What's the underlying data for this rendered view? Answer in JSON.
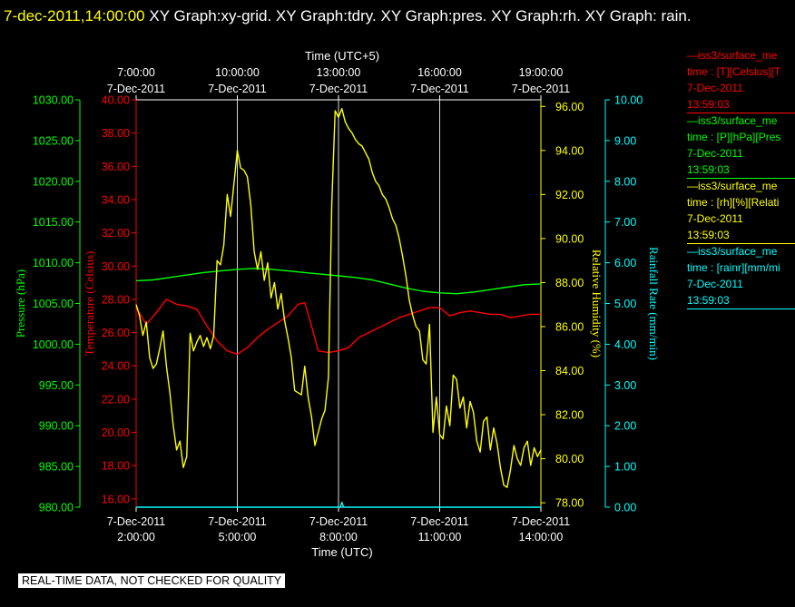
{
  "header": {
    "timestamp": "7-dec-2011,14:00:00",
    "graphs": "XY Graph:xy-grid.  XY Graph:tdry.  XY Graph:pres.  XY Graph:rh.  XY Graph: rain."
  },
  "legend": [
    {
      "color": "#ff0000",
      "line1": "—iss3/surface_me",
      "line2": "time : [T][Celsius][T",
      "date": "7-Dec-2011",
      "time": "13:59:03"
    },
    {
      "color": "#00ff00",
      "line1": "—iss3/surface_me",
      "line2": "time : [P][hPa][Pres",
      "date": "7-Dec-2011",
      "time": "13:59:03"
    },
    {
      "color": "#ffff00",
      "line1": "—iss3/surface_me",
      "line2": "time : [rh][%][Relati",
      "date": "7-Dec-2011",
      "time": "13:59:03"
    },
    {
      "color": "#00ffff",
      "line1": "—iss3/surface_me",
      "line2": "time : [rainr][mm/mi",
      "date": "7-Dec-2011",
      "time": "13:59:03"
    }
  ],
  "footer": "REAL-TIME DATA, NOT CHECKED FOR QUALITY",
  "chart_data": {
    "type": "line",
    "x_bottom": {
      "label": "Time (UTC)",
      "ticks": [
        {
          "date": "7-Dec-2011",
          "time": "2:00:00"
        },
        {
          "date": "7-Dec-2011",
          "time": "5:00:00"
        },
        {
          "date": "7-Dec-2011",
          "time": "8:00:00"
        },
        {
          "date": "7-Dec-2011",
          "time": "11:00:00"
        },
        {
          "date": "7-Dec-2011",
          "time": "14:00:00"
        }
      ],
      "range_hours": [
        2,
        14
      ]
    },
    "x_top": {
      "label": "Time (UTC+5)",
      "ticks": [
        {
          "time": "7:00:00",
          "date": "7-Dec-2011"
        },
        {
          "time": "10:00:00",
          "date": "7-Dec-2011"
        },
        {
          "time": "13:00:00",
          "date": "7-Dec-2011"
        },
        {
          "time": "16:00:00",
          "date": "7-Dec-2011"
        },
        {
          "time": "19:00:00",
          "date": "7-Dec-2011"
        }
      ]
    },
    "axes": {
      "pressure": {
        "label": "Pressure (hPa)",
        "color": "#00ff00",
        "ylim": [
          980,
          1030
        ],
        "ticks": [
          "980.00",
          "985.00",
          "990.00",
          "995.00",
          "1000.00",
          "1005.00",
          "1010.00",
          "1015.00",
          "1020.00",
          "1025.00",
          "1030.00"
        ]
      },
      "temperature": {
        "label": "Temperature (Celsius)",
        "color": "#ff0000",
        "ylim": [
          15.5,
          40
        ],
        "ticks": [
          "16.00",
          "18.00",
          "20.00",
          "22.00",
          "24.00",
          "26.00",
          "28.00",
          "30.00",
          "32.00",
          "34.00",
          "36.00",
          "38.00",
          "40.00"
        ]
      },
      "humidity": {
        "label": "Relative Humidity (%)",
        "color": "#ffff00",
        "ylim": [
          77.8,
          96.3
        ],
        "ticks": [
          "78.00",
          "80.00",
          "82.00",
          "84.00",
          "86.00",
          "88.00",
          "90.00",
          "92.00",
          "94.00",
          "96.00"
        ]
      },
      "rainfall": {
        "label": "Rainfall Rate (mm/min)",
        "color": "#00ffff",
        "ylim": [
          0,
          10
        ],
        "ticks": [
          "0.00",
          "1.00",
          "2.00",
          "3.00",
          "4.00",
          "5.00",
          "6.00",
          "7.00",
          "8.00",
          "9.00",
          "10.00"
        ]
      }
    },
    "grid": "vertical lines at labeled times",
    "series": [
      {
        "name": "iss3/surface_me [T][Celsius]",
        "axis": "temperature",
        "color": "#ff0000",
        "x": [
          2.0,
          2.3,
          2.6,
          2.9,
          3.2,
          3.5,
          3.8,
          4.1,
          4.4,
          4.7,
          5.0,
          5.3,
          5.6,
          5.9,
          6.2,
          6.5,
          6.8,
          7.0,
          7.2,
          7.4,
          7.7,
          8.0,
          8.3,
          8.6,
          8.9,
          9.2,
          9.5,
          9.8,
          10.1,
          10.4,
          10.7,
          11.0,
          11.3,
          11.6,
          11.9,
          12.2,
          12.5,
          12.8,
          13.1,
          13.4,
          13.7,
          14.0
        ],
        "y": [
          27.5,
          26.5,
          27.2,
          28.0,
          27.7,
          27.6,
          27.4,
          26.4,
          25.5,
          24.9,
          24.7,
          25.1,
          25.7,
          26.2,
          26.6,
          27.0,
          27.7,
          27.8,
          26.4,
          24.9,
          24.8,
          24.9,
          25.1,
          25.7,
          26.0,
          26.3,
          26.6,
          26.9,
          27.1,
          27.3,
          27.5,
          27.5,
          27.0,
          27.2,
          27.3,
          27.2,
          27.1,
          27.1,
          26.9,
          27.0,
          27.1,
          27.1
        ]
      },
      {
        "name": "iss3/surface_me [P][hPa]",
        "axis": "pressure",
        "color": "#00ff00",
        "x": [
          2.0,
          2.5,
          3.0,
          3.5,
          4.0,
          4.5,
          5.0,
          5.5,
          6.0,
          6.5,
          7.0,
          7.5,
          8.0,
          8.5,
          9.0,
          9.5,
          10.0,
          10.5,
          11.0,
          11.5,
          12.0,
          12.5,
          13.0,
          13.5,
          14.0
        ],
        "y": [
          1007.8,
          1007.9,
          1008.2,
          1008.5,
          1008.8,
          1009.0,
          1009.2,
          1009.3,
          1009.2,
          1009.0,
          1008.8,
          1008.6,
          1008.4,
          1008.2,
          1007.9,
          1007.4,
          1006.9,
          1006.5,
          1006.3,
          1006.2,
          1006.4,
          1006.7,
          1007.0,
          1007.3,
          1007.4
        ]
      },
      {
        "name": "iss3/surface_me [rh][%]",
        "axis": "humidity",
        "color": "#ffff00",
        "x": [
          2.0,
          2.1,
          2.2,
          2.3,
          2.4,
          2.5,
          2.6,
          2.7,
          2.8,
          2.9,
          3.0,
          3.1,
          3.2,
          3.3,
          3.4,
          3.5,
          3.6,
          3.7,
          3.8,
          3.9,
          4.0,
          4.1,
          4.2,
          4.3,
          4.4,
          4.5,
          4.6,
          4.7,
          4.8,
          4.9,
          5.0,
          5.1,
          5.2,
          5.3,
          5.4,
          5.5,
          5.6,
          5.7,
          5.8,
          5.9,
          6.0,
          6.1,
          6.2,
          6.3,
          6.4,
          6.5,
          6.6,
          6.7,
          6.8,
          6.9,
          7.0,
          7.1,
          7.2,
          7.3,
          7.4,
          7.5,
          7.6,
          7.7,
          7.8,
          7.9,
          8.0,
          8.1,
          8.2,
          8.3,
          8.4,
          8.5,
          8.6,
          8.7,
          8.8,
          8.9,
          9.0,
          9.1,
          9.2,
          9.3,
          9.4,
          9.5,
          9.6,
          9.7,
          9.8,
          9.9,
          10.0,
          10.1,
          10.2,
          10.3,
          10.4,
          10.5,
          10.6,
          10.7,
          10.8,
          10.9,
          11.0,
          11.1,
          11.2,
          11.3,
          11.4,
          11.5,
          11.6,
          11.7,
          11.8,
          11.9,
          12.0,
          12.1,
          12.2,
          12.3,
          12.4,
          12.5,
          12.6,
          12.7,
          12.8,
          12.9,
          13.0,
          13.1,
          13.2,
          13.3,
          13.4,
          13.5,
          13.6,
          13.7,
          13.8,
          13.9,
          14.0
        ],
        "y": [
          87.0,
          86.5,
          85.6,
          86.2,
          84.6,
          84.1,
          84.3,
          85.0,
          85.8,
          84.2,
          83.0,
          81.5,
          80.4,
          80.8,
          79.6,
          80.1,
          85.7,
          84.9,
          85.3,
          85.6,
          85.1,
          85.5,
          85.0,
          85.6,
          89.0,
          88.8,
          89.7,
          92.0,
          91.0,
          92.5,
          94.0,
          93.2,
          93.1,
          92.8,
          91.5,
          89.4,
          88.6,
          89.4,
          88.1,
          88.9,
          87.3,
          88.0,
          86.8,
          87.5,
          86.3,
          85.5,
          84.6,
          83.1,
          83.0,
          82.9,
          84.2,
          82.8,
          81.9,
          80.6,
          81.2,
          81.8,
          82.2,
          83.7,
          91.6,
          95.8,
          95.5,
          95.9,
          95.3,
          95.0,
          94.8,
          94.5,
          94.3,
          94.2,
          93.9,
          93.6,
          93.0,
          92.6,
          92.4,
          92.0,
          91.8,
          91.4,
          90.9,
          90.6,
          90.0,
          89.2,
          88.3,
          87.2,
          86.5,
          86.0,
          85.8,
          84.5,
          84.3,
          86.1,
          81.2,
          82.8,
          81.1,
          80.9,
          82.4,
          81.5,
          83.8,
          83.6,
          82.3,
          82.8,
          81.4,
          82.6,
          82.1,
          80.8,
          80.3,
          81.7,
          81.9,
          80.4,
          81.4,
          80.7,
          79.6,
          78.8,
          78.7,
          79.5,
          80.6,
          80.0,
          79.7,
          80.5,
          80.8,
          79.7,
          80.5,
          80.1,
          80.4
        ]
      },
      {
        "name": "iss3/surface_me [rainr][mm/min]",
        "axis": "rainfall",
        "color": "#00ffff",
        "x": [
          2.0,
          8.0,
          8.05,
          8.1,
          8.15,
          14.0
        ],
        "y": [
          0.0,
          0.0,
          0.0,
          0.12,
          0.0,
          0.0
        ]
      }
    ]
  }
}
